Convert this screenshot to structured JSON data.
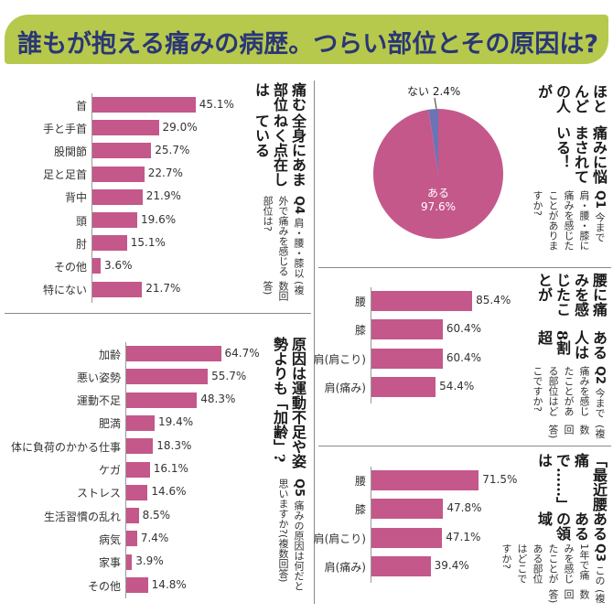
{
  "banner": {
    "title": "誰もが抱える痛みの病歴。つらい部位とその原因は?",
    "bg_color": "#b6c94c",
    "text_color": "#2a3676"
  },
  "colors": {
    "bar": "#c4588a",
    "pie_main": "#c4588a",
    "pie_minor": "#6b74b5"
  },
  "q1": {
    "headline": [
      "ほとんどの人が",
      "痛みに悩まされている！"
    ],
    "number": "Q1",
    "question": "今まで肩・腰・膝に痛みを感じたことがありますか?"
  },
  "q2": {
    "headline": [
      "腰に痛みを感じたことが",
      "ある人は8割超"
    ],
    "number": "Q2",
    "question": "今まで痛みを感じたことがある部位はどこですか?",
    "note": "(複数回答)"
  },
  "q3": {
    "headline": [
      "「最近腰痛で……」は",
      "あるあるの領域"
    ],
    "number": "Q3",
    "question": "この1年で痛みを感じたことがある部位はどこですか?",
    "note": "(複数回答)"
  },
  "q4": {
    "headline": [
      "痛む部位は",
      "全身にあまねく点在している"
    ],
    "number": "Q4",
    "question": "肩・腰・膝以外で痛みを感じる部位は?",
    "note": "(複数回答)"
  },
  "q5": {
    "headline": [
      "原因は運動不足や姿勢よりも「加齢」?"
    ],
    "number": "Q5",
    "question": "痛みの原因は何だと思いますか?(複数回答)"
  },
  "chart_data": [
    {
      "id": "q1",
      "type": "pie",
      "categories": [
        "ある",
        "ない"
      ],
      "values": [
        97.6,
        2.4
      ],
      "labels": [
        "97.6%",
        "2.4%"
      ]
    },
    {
      "id": "q2",
      "type": "bar",
      "orientation": "horizontal",
      "categories": [
        "腰",
        "膝",
        "肩(肩こり)",
        "肩(痛み)"
      ],
      "values": [
        85.4,
        60.4,
        60.4,
        54.4
      ],
      "labels": [
        "85.4%",
        "60.4%",
        "60.4%",
        "54.4%"
      ]
    },
    {
      "id": "q3",
      "type": "bar",
      "orientation": "horizontal",
      "categories": [
        "腰",
        "膝",
        "肩(肩こり)",
        "肩(痛み)"
      ],
      "values": [
        71.5,
        47.8,
        47.1,
        39.4
      ],
      "labels": [
        "71.5%",
        "47.8%",
        "47.1%",
        "39.4%"
      ]
    },
    {
      "id": "q4",
      "type": "bar",
      "orientation": "horizontal",
      "categories": [
        "首",
        "手と手首",
        "股関節",
        "足と足首",
        "背中",
        "頭",
        "肘",
        "その他",
        "特にない"
      ],
      "values": [
        45.1,
        29.0,
        25.7,
        22.7,
        21.9,
        19.6,
        15.1,
        3.6,
        21.7
      ],
      "labels": [
        "45.1%",
        "29.0%",
        "25.7%",
        "22.7%",
        "21.9%",
        "19.6%",
        "15.1%",
        "3.6%",
        "21.7%"
      ]
    },
    {
      "id": "q5",
      "type": "bar",
      "orientation": "horizontal",
      "categories": [
        "加齢",
        "悪い姿勢",
        "運動不足",
        "肥満",
        "体に負荷のかかる仕事",
        "ケガ",
        "ストレス",
        "生活習慣の乱れ",
        "病気",
        "家事",
        "その他"
      ],
      "values": [
        64.7,
        55.7,
        48.3,
        19.4,
        18.3,
        16.1,
        14.6,
        8.5,
        7.4,
        3.9,
        14.8
      ],
      "labels": [
        "64.7%",
        "55.7%",
        "48.3%",
        "19.4%",
        "18.3%",
        "16.1%",
        "14.6%",
        "8.5%",
        "7.4%",
        "3.9%",
        "14.8%"
      ]
    }
  ]
}
